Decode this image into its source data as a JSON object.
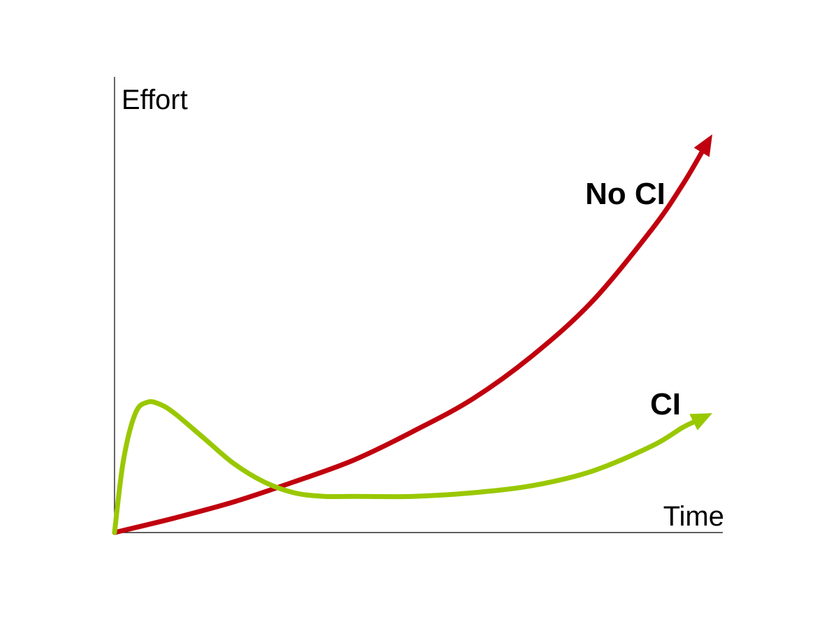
{
  "chart_data": {
    "type": "line",
    "xlabel": "Time",
    "ylabel": "Effort",
    "grid": false,
    "xlim": [
      0,
      1
    ],
    "ylim": [
      0,
      1
    ],
    "series": [
      {
        "name": "No CI",
        "color": "#C0000E",
        "x": [
          0.0,
          0.1,
          0.2,
          0.3,
          0.4,
          0.5,
          0.6,
          0.7,
          0.8,
          0.9,
          0.95,
          1.0
        ],
        "y": [
          0.0,
          0.04,
          0.085,
          0.14,
          0.2,
          0.28,
          0.37,
          0.49,
          0.64,
          0.84,
          0.96,
          1.1
        ]
      },
      {
        "name": "CI",
        "color": "#99C800",
        "x": [
          0.0,
          0.015,
          0.035,
          0.055,
          0.075,
          0.1,
          0.15,
          0.2,
          0.25,
          0.3,
          0.35,
          0.4,
          0.5,
          0.6,
          0.7,
          0.8,
          0.9,
          0.95,
          1.0
        ],
        "y": [
          0.0,
          0.2,
          0.33,
          0.36,
          0.355,
          0.33,
          0.26,
          0.19,
          0.14,
          0.11,
          0.1,
          0.1,
          0.1,
          0.11,
          0.13,
          0.17,
          0.24,
          0.29,
          0.33
        ]
      }
    ]
  }
}
